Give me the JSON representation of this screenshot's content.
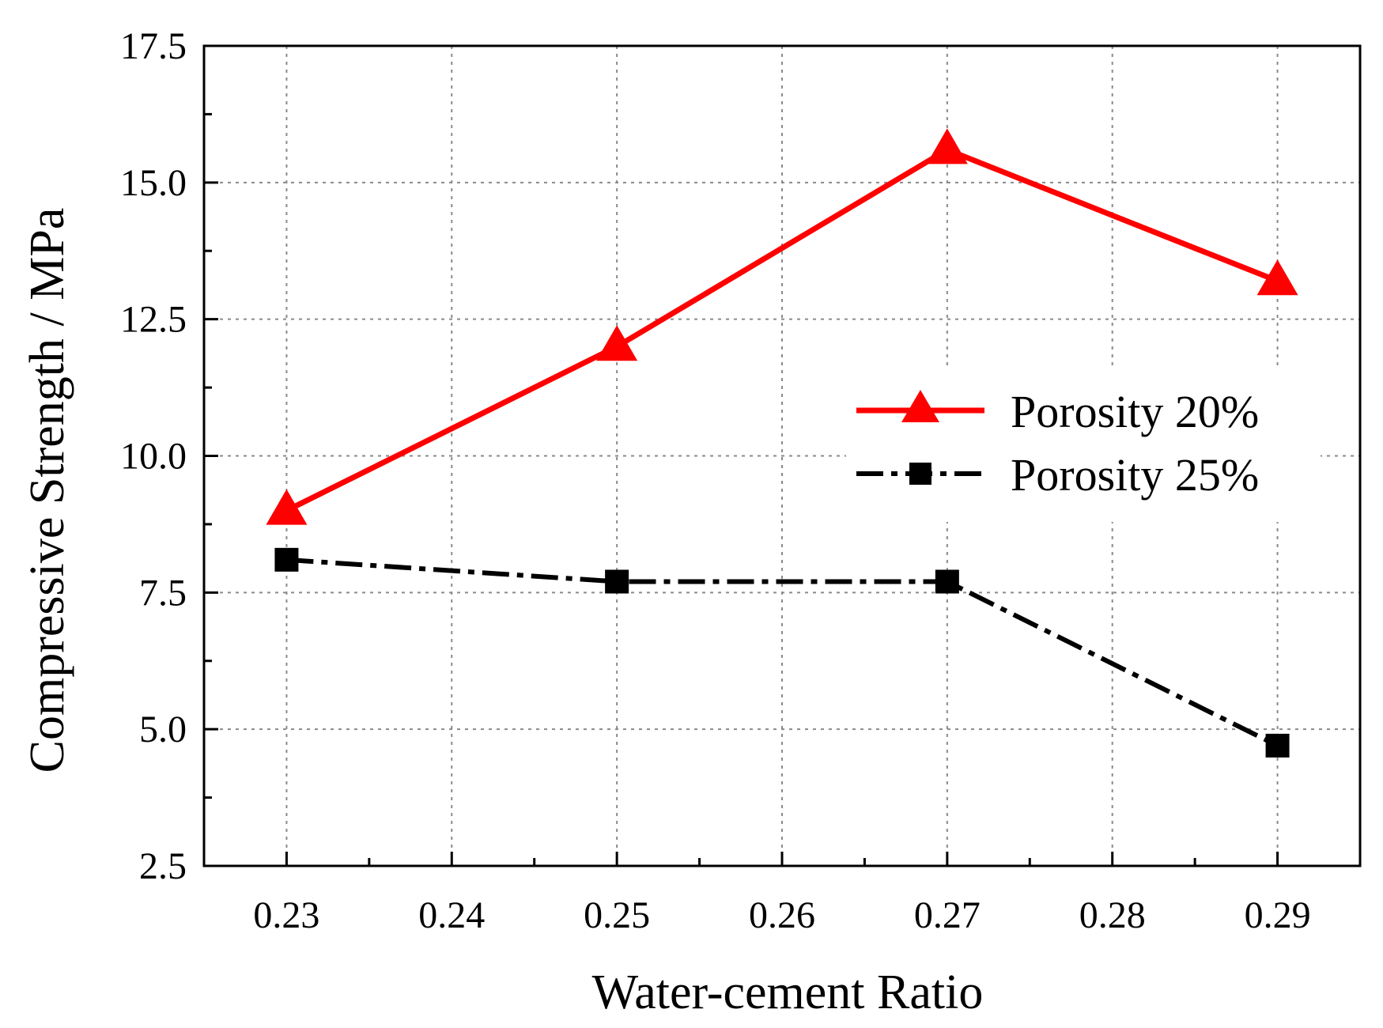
{
  "chart_data": {
    "type": "line",
    "title": "",
    "xlabel": "Water-cement Ratio",
    "ylabel": "Compressive Strength / MPa",
    "x": [
      0.23,
      0.25,
      0.27,
      0.29
    ],
    "xlim": [
      0.225,
      0.295
    ],
    "ylim": [
      2.5,
      17.5
    ],
    "x_ticks": [
      "0.23",
      "0.24",
      "0.25",
      "0.26",
      "0.27",
      "0.28",
      "0.29"
    ],
    "x_tick_values": [
      0.23,
      0.24,
      0.25,
      0.26,
      0.27,
      0.28,
      0.29
    ],
    "y_ticks": [
      "2.5",
      "5.0",
      "7.5",
      "10.0",
      "12.5",
      "15.0",
      "17.5"
    ],
    "y_tick_values": [
      2.5,
      5.0,
      7.5,
      10.0,
      12.5,
      15.0,
      17.5
    ],
    "grid": true,
    "legend_position": "center-right",
    "series": [
      {
        "name": "Porosity 20%",
        "values": [
          9.0,
          12.0,
          15.6,
          13.2
        ],
        "color": "#ff0000",
        "marker": "triangle",
        "line_style": "solid"
      },
      {
        "name": "Porosity 25%",
        "values": [
          8.1,
          7.7,
          7.7,
          4.7
        ],
        "color": "#000000",
        "marker": "square",
        "line_style": "dash-dot"
      }
    ]
  }
}
